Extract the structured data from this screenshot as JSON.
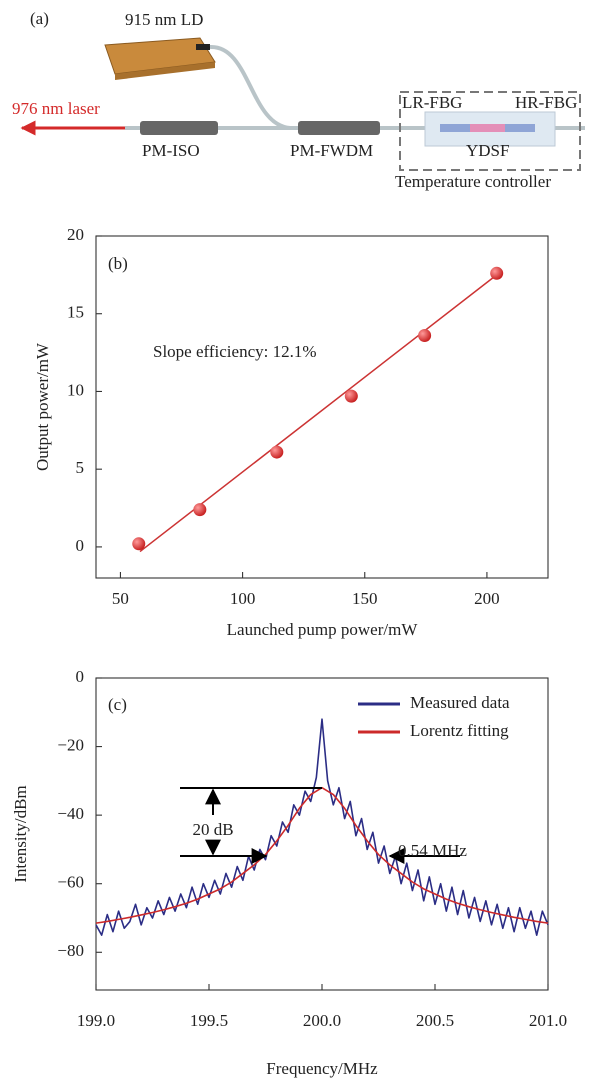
{
  "diagram": {
    "panel_label": "(a)",
    "pump": "915 nm LD",
    "output": "976 nm laser",
    "isolator": "PM-ISO",
    "wdm": "PM-FWDM",
    "lr_fbg": "LR-FBG",
    "hr_fbg": "HR-FBG",
    "fiber": "YDSF",
    "controller": "Temperature controller"
  },
  "chart_data": [
    {
      "type": "scatter",
      "panel_label": "(b)",
      "xlabel": "Launched pump power/mW",
      "ylabel": "Output power/mW",
      "annotation": "Slope efficiency: 12.1%",
      "xlim": [
        40,
        225
      ],
      "ylim": [
        -2,
        20
      ],
      "xticks": [
        50,
        100,
        150,
        200
      ],
      "yticks": [
        0,
        5,
        10,
        15,
        20
      ],
      "series": [
        {
          "mode": "markers",
          "color": "#d42a2a",
          "x": [
            57.5,
            82.5,
            114,
            144.5,
            174.5,
            204
          ],
          "values": [
            0.2,
            2.4,
            6.1,
            9.7,
            13.6,
            17.6
          ]
        },
        {
          "mode": "line",
          "color": "#cc3333",
          "x": [
            58,
            204
          ],
          "values": [
            -0.3,
            17.5
          ]
        }
      ]
    },
    {
      "type": "line",
      "panel_label": "(c)",
      "xlabel": "Frequency/MHz",
      "ylabel": "Intensity/dBm",
      "annotations": [
        "20 dB",
        "0.54 MHz"
      ],
      "legend": "upper right",
      "xlim": [
        199,
        201
      ],
      "ylim": [
        -91,
        0
      ],
      "xticks": [
        {
          "value": 199,
          "label": "199.0"
        },
        {
          "value": 199.5,
          "label": "199.5"
        },
        {
          "value": 200,
          "label": "200.0"
        },
        {
          "value": 200.5,
          "label": "200.5"
        },
        {
          "value": 201,
          "label": "201.0"
        }
      ],
      "yticks": [
        0,
        {
          "value": -20,
          "label": "−20"
        },
        {
          "value": -40,
          "label": "−40"
        },
        {
          "value": -60,
          "label": "−60"
        },
        {
          "value": -80,
          "label": "−80"
        }
      ],
      "series": [
        {
          "name": "Measured data",
          "color": "#2b2d85",
          "x": [
            199,
            199.025,
            199.05,
            199.075,
            199.1,
            199.125,
            199.15,
            199.175,
            199.2,
            199.225,
            199.25,
            199.275,
            199.3,
            199.325,
            199.35,
            199.375,
            199.4,
            199.425,
            199.45,
            199.475,
            199.5,
            199.525,
            199.55,
            199.575,
            199.6,
            199.625,
            199.65,
            199.675,
            199.7,
            199.725,
            199.75,
            199.775,
            199.8,
            199.825,
            199.85,
            199.875,
            199.9,
            199.925,
            199.95,
            199.975,
            200,
            200.025,
            200.05,
            200.075,
            200.1,
            200.125,
            200.15,
            200.175,
            200.2,
            200.225,
            200.25,
            200.275,
            200.3,
            200.325,
            200.35,
            200.375,
            200.4,
            200.425,
            200.45,
            200.475,
            200.5,
            200.525,
            200.55,
            200.575,
            200.6,
            200.625,
            200.65,
            200.675,
            200.7,
            200.725,
            200.75,
            200.775,
            200.8,
            200.825,
            200.85,
            200.875,
            200.9,
            200.925,
            200.95,
            200.975,
            201
          ],
          "values": [
            -72,
            -75,
            -69,
            -74,
            -68,
            -73,
            -71,
            -66,
            -72,
            -67,
            -70,
            -65,
            -69,
            -64,
            -68,
            -63,
            -67,
            -61,
            -66,
            -60,
            -64,
            -59,
            -63,
            -57,
            -61,
            -55,
            -59,
            -52,
            -56,
            -50,
            -53,
            -46,
            -49,
            -42,
            -45,
            -37,
            -40,
            -33,
            -36,
            -29,
            -12,
            -30,
            -37,
            -32,
            -41,
            -36,
            -46,
            -41,
            -50,
            -45,
            -54,
            -49,
            -57,
            -52,
            -60,
            -54,
            -62,
            -56,
            -65,
            -58,
            -66,
            -60,
            -68,
            -61,
            -69,
            -62,
            -70,
            -64,
            -71,
            -65,
            -72,
            -66,
            -73,
            -67,
            -74,
            -67,
            -73,
            -68,
            -75,
            -68,
            -72
          ]
        },
        {
          "name": "Lorentz fitting",
          "color": "#cc2a2a",
          "x": [
            199,
            199.05,
            199.1,
            199.15,
            199.2,
            199.25,
            199.3,
            199.35,
            199.4,
            199.45,
            199.5,
            199.55,
            199.6,
            199.65,
            199.7,
            199.75,
            199.8,
            199.85,
            199.9,
            199.95,
            200,
            200.05,
            200.1,
            200.15,
            200.2,
            200.25,
            200.3,
            200.35,
            200.4,
            200.45,
            200.5,
            200.55,
            200.6,
            200.65,
            200.7,
            200.75,
            200.8,
            200.85,
            200.9,
            200.95,
            201
          ],
          "values": [
            -71.5,
            -71,
            -70.4,
            -69.8,
            -69.1,
            -68.4,
            -67.6,
            -66.7,
            -65.7,
            -64.5,
            -63,
            -61.5,
            -59.5,
            -57,
            -54.5,
            -51.5,
            -47.5,
            -43,
            -38,
            -34,
            -32,
            -34,
            -38,
            -43,
            -47.5,
            -51.5,
            -54.5,
            -57,
            -59.5,
            -61.5,
            -63,
            -64.5,
            -65.7,
            -66.7,
            -67.6,
            -68.4,
            -69.1,
            -69.8,
            -70.4,
            -71,
            -71.5
          ]
        }
      ]
    }
  ]
}
